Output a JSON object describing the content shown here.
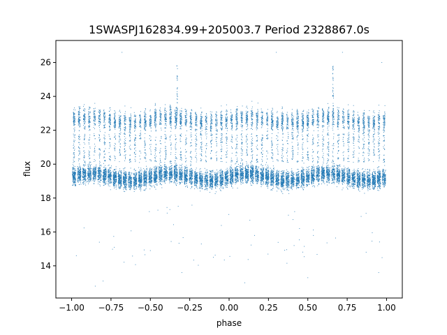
{
  "chart_data": {
    "type": "scatter",
    "title": "1SWASPJ162834.99+205003.7 Period 2328867.0s",
    "xlabel": "phase",
    "ylabel": "flux",
    "xlim": [
      -1.1,
      1.1
    ],
    "ylim": [
      12.1,
      27.3
    ],
    "xticks": [
      -1.0,
      -0.75,
      -0.5,
      -0.25,
      0.0,
      0.25,
      0.5,
      0.75,
      1.0
    ],
    "xtick_labels": [
      "−1.00",
      "−0.75",
      "−0.50",
      "−0.25",
      "0.00",
      "0.25",
      "0.50",
      "0.75",
      "1.00"
    ],
    "yticks": [
      14,
      16,
      18,
      20,
      22,
      24,
      26
    ],
    "ytick_labels": [
      "14",
      "16",
      "18",
      "20",
      "22",
      "24",
      "26"
    ],
    "grid": false,
    "marker_color": "#1f77b4",
    "series": [
      {
        "phase_range": [
          -1.0,
          1.0
        ],
        "note_values": "phase-folded light curve; main flux band ~18-20.5, secondary band ~21-24, sparse outliers 12.7-26.6",
        "band_main": {
          "flux_low": 17.9,
          "flux_high": 20.6
        },
        "band_upper": {
          "flux_low": 20.8,
          "flux_high": 24.0
        },
        "outliers": [
          {
            "x": -0.97,
            "y": 14.6
          },
          {
            "x": -0.85,
            "y": 12.8
          },
          {
            "x": -0.8,
            "y": 13.1
          },
          {
            "x": -0.68,
            "y": 26.6
          },
          {
            "x": -0.5,
            "y": 14.9
          },
          {
            "x": -0.33,
            "y": 25.8
          },
          {
            "x": -0.3,
            "y": 13.6
          },
          {
            "x": -0.1,
            "y": 14.5
          },
          {
            "x": 0.1,
            "y": 13.0
          },
          {
            "x": 0.3,
            "y": 26.6
          },
          {
            "x": 0.5,
            "y": 13.3
          },
          {
            "x": 0.66,
            "y": 25.7
          },
          {
            "x": 0.72,
            "y": 26.6
          },
          {
            "x": 0.95,
            "y": 13.6
          },
          {
            "x": 0.97,
            "y": 26.0
          }
        ]
      }
    ]
  }
}
